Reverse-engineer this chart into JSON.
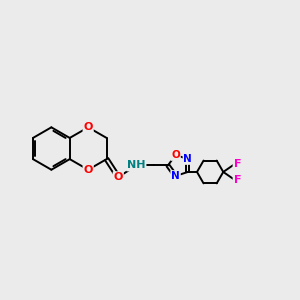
{
  "background_color": "#ebebeb",
  "bond_color": "#000000",
  "figsize": [
    3.0,
    3.0
  ],
  "dpi": 100,
  "atom_colors": {
    "O": "#ff0000",
    "N": "#0000ff",
    "F": "#ff00cc",
    "C": "#000000",
    "H": "#008080"
  }
}
